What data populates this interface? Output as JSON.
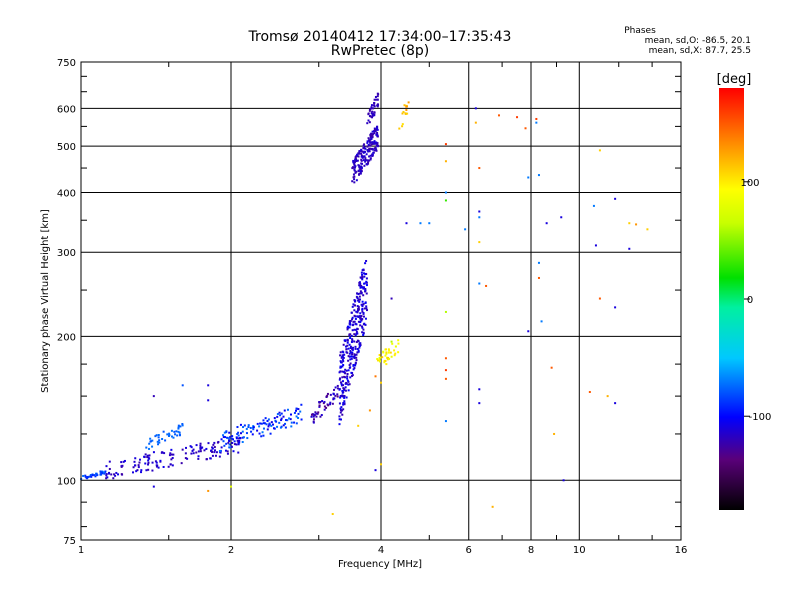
{
  "chart_data": {
    "type": "scatter",
    "title": "Tromsø 20140412 17:34:00–17:35:43",
    "subtitle": "RwPretec (8p)",
    "xlabel": "Frequency [MHz]",
    "ylabel": "Stationary phase Virtual Height [km]",
    "x_scale": "log2",
    "y_scale": "log",
    "xlim": [
      1,
      16
    ],
    "ylim": [
      75,
      750
    ],
    "x_ticks": [
      1,
      2,
      4,
      6,
      8,
      10,
      16
    ],
    "y_ticks": [
      75,
      100,
      200,
      300,
      400,
      500,
      600,
      750
    ],
    "grid": true,
    "phase_stats": {
      "title": "Phases",
      "line_o": "mean, sd,O: -86.5, 20.1",
      "line_x": "mean, sd,X:  87.7, 25.5"
    },
    "colorbar": {
      "label": "[deg]",
      "range": [
        -180,
        180
      ],
      "ticks": [
        -100,
        0,
        100
      ]
    },
    "clusters": [
      {
        "f": [
          1.0,
          1.12
        ],
        "h": [
          100,
          105
        ],
        "phase": [
          -70,
          -100
        ],
        "n": 35
      },
      {
        "f": [
          1.12,
          2.1
        ],
        "h": [
          100,
          125
        ],
        "phase": [
          -105,
          -125
        ],
        "n": 150
      },
      {
        "f": [
          1.35,
          1.6
        ],
        "h": [
          115,
          132
        ],
        "phase": [
          -70,
          -80
        ],
        "n": 40
      },
      {
        "f": [
          1.9,
          2.8
        ],
        "h": [
          115,
          145
        ],
        "phase": [
          -70,
          -110
        ],
        "n": 120
      },
      {
        "f": [
          2.9,
          3.3
        ],
        "h": [
          130,
          160
        ],
        "phase": [
          -110,
          -135
        ],
        "n": 50
      },
      {
        "f": [
          3.3,
          3.75
        ],
        "h": [
          130,
          300
        ],
        "phase": [
          -100,
          -125
        ],
        "n": 320
      },
      {
        "f": [
          3.5,
          3.95
        ],
        "h": [
          410,
          560
        ],
        "phase": [
          -110,
          -125
        ],
        "n": 190
      },
      {
        "f": [
          3.75,
          3.95
        ],
        "h": [
          540,
          650
        ],
        "phase": [
          -115,
          -125
        ],
        "n": 40
      },
      {
        "f": [
          3.9,
          4.4
        ],
        "h": [
          170,
          200
        ],
        "phase": [
          80,
          110
        ],
        "n": 35
      },
      {
        "f": [
          4.35,
          4.55
        ],
        "h": [
          520,
          650
        ],
        "phase": [
          100,
          130
        ],
        "n": 15
      }
    ],
    "points": [
      {
        "f": 1.8,
        "h": 158,
        "phase": -110
      },
      {
        "f": 1.8,
        "h": 147,
        "phase": -110
      },
      {
        "f": 1.6,
        "h": 158,
        "phase": -80
      },
      {
        "f": 1.4,
        "h": 150,
        "phase": -120
      },
      {
        "f": 1.4,
        "h": 97,
        "phase": -110
      },
      {
        "f": 1.8,
        "h": 95,
        "phase": 130
      },
      {
        "f": 2.0,
        "h": 97,
        "phase": 80
      },
      {
        "f": 3.2,
        "h": 85,
        "phase": 110
      },
      {
        "f": 3.6,
        "h": 130,
        "phase": 110
      },
      {
        "f": 3.8,
        "h": 140,
        "phase": 130
      },
      {
        "f": 3.9,
        "h": 105,
        "phase": -110
      },
      {
        "f": 4.0,
        "h": 108,
        "phase": 110
      },
      {
        "f": 4.2,
        "h": 240,
        "phase": -120
      },
      {
        "f": 4.5,
        "h": 345,
        "phase": -110
      },
      {
        "f": 4.8,
        "h": 345,
        "phase": -70
      },
      {
        "f": 5.0,
        "h": 345,
        "phase": -70
      },
      {
        "f": 5.4,
        "h": 505,
        "phase": 160
      },
      {
        "f": 5.4,
        "h": 465,
        "phase": 120
      },
      {
        "f": 5.4,
        "h": 400,
        "phase": -70
      },
      {
        "f": 5.4,
        "h": 385,
        "phase": 30
      },
      {
        "f": 5.4,
        "h": 225,
        "phase": 60
      },
      {
        "f": 5.4,
        "h": 180,
        "phase": 150
      },
      {
        "f": 5.4,
        "h": 170,
        "phase": 160
      },
      {
        "f": 5.4,
        "h": 163,
        "phase": 150
      },
      {
        "f": 5.4,
        "h": 133,
        "phase": -70
      },
      {
        "f": 5.9,
        "h": 335,
        "phase": -70
      },
      {
        "f": 6.2,
        "h": 600,
        "phase": -110
      },
      {
        "f": 6.2,
        "h": 560,
        "phase": 120
      },
      {
        "f": 6.3,
        "h": 450,
        "phase": 150
      },
      {
        "f": 6.3,
        "h": 365,
        "phase": -110
      },
      {
        "f": 6.3,
        "h": 355,
        "phase": -70
      },
      {
        "f": 6.3,
        "h": 315,
        "phase": 110
      },
      {
        "f": 6.3,
        "h": 258,
        "phase": -70
      },
      {
        "f": 6.3,
        "h": 155,
        "phase": -110
      },
      {
        "f": 6.3,
        "h": 145,
        "phase": -110
      },
      {
        "f": 6.5,
        "h": 255,
        "phase": 150
      },
      {
        "f": 6.7,
        "h": 88,
        "phase": 120
      },
      {
        "f": 6.9,
        "h": 580,
        "phase": 150
      },
      {
        "f": 7.5,
        "h": 575,
        "phase": 160
      },
      {
        "f": 7.8,
        "h": 545,
        "phase": 150
      },
      {
        "f": 7.9,
        "h": 430,
        "phase": -70
      },
      {
        "f": 7.9,
        "h": 205,
        "phase": -110
      },
      {
        "f": 8.2,
        "h": 570,
        "phase": 160
      },
      {
        "f": 8.2,
        "h": 560,
        "phase": -70
      },
      {
        "f": 8.3,
        "h": 435,
        "phase": -70
      },
      {
        "f": 8.3,
        "h": 285,
        "phase": -70
      },
      {
        "f": 8.3,
        "h": 265,
        "phase": 150
      },
      {
        "f": 8.4,
        "h": 215,
        "phase": -70
      },
      {
        "f": 8.6,
        "h": 345,
        "phase": -110
      },
      {
        "f": 8.8,
        "h": 172,
        "phase": 150
      },
      {
        "f": 8.9,
        "h": 125,
        "phase": 120
      },
      {
        "f": 9.2,
        "h": 355,
        "phase": -110
      },
      {
        "f": 9.3,
        "h": 100,
        "phase": -110
      },
      {
        "f": 10.7,
        "h": 375,
        "phase": -70
      },
      {
        "f": 10.8,
        "h": 310,
        "phase": -110
      },
      {
        "f": 10.5,
        "h": 153,
        "phase": 150
      },
      {
        "f": 11.0,
        "h": 490,
        "phase": 110
      },
      {
        "f": 11.0,
        "h": 240,
        "phase": 150
      },
      {
        "f": 11.4,
        "h": 150,
        "phase": 120
      },
      {
        "f": 11.8,
        "h": 388,
        "phase": -110
      },
      {
        "f": 11.8,
        "h": 230,
        "phase": -110
      },
      {
        "f": 11.8,
        "h": 145,
        "phase": -110
      },
      {
        "f": 12.6,
        "h": 345,
        "phase": 110
      },
      {
        "f": 12.6,
        "h": 305,
        "phase": -110
      },
      {
        "f": 13.0,
        "h": 343,
        "phase": 130
      },
      {
        "f": 13.7,
        "h": 335,
        "phase": 110
      },
      {
        "f": 4.2,
        "h": 195,
        "phase": 60
      },
      {
        "f": 4.1,
        "h": 175,
        "phase": 100
      },
      {
        "f": 4.0,
        "h": 160,
        "phase": 110
      },
      {
        "f": 3.9,
        "h": 165,
        "phase": 140
      }
    ]
  }
}
